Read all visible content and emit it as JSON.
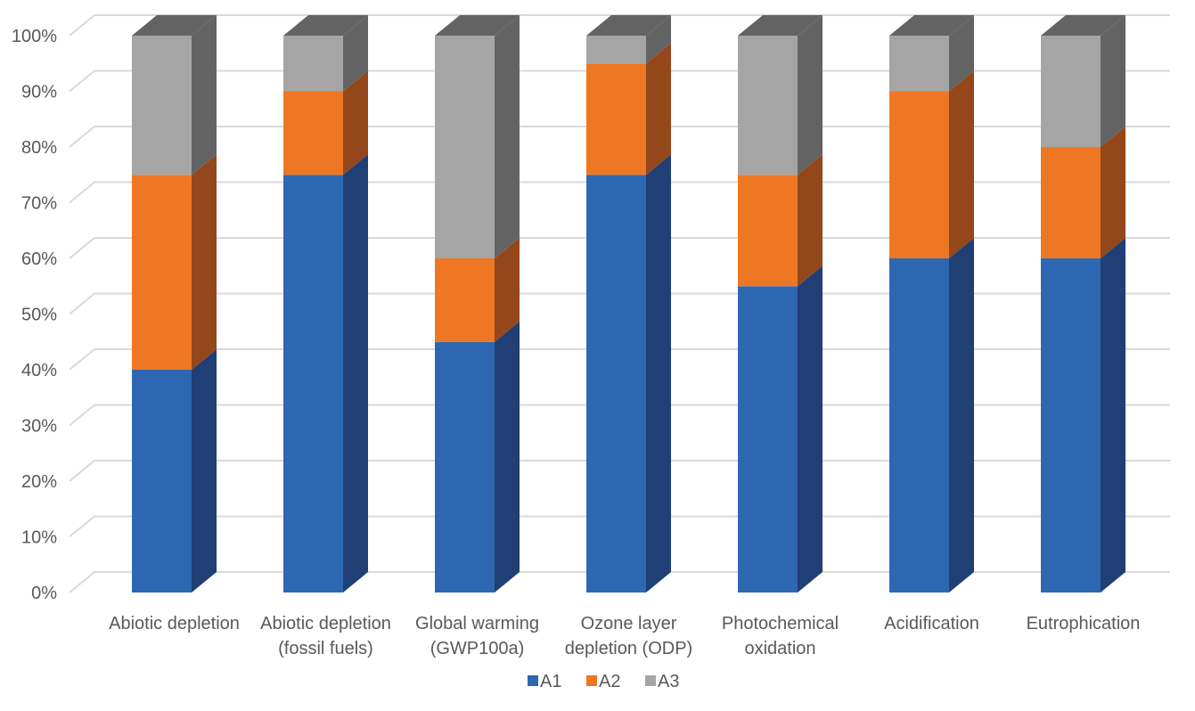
{
  "chart_data": {
    "type": "bar",
    "stacked": true,
    "normalized": true,
    "style": "3d-column",
    "categories": [
      [
        "Abiotic depletion"
      ],
      [
        "Abiotic depletion",
        "(fossil fuels)"
      ],
      [
        "Global warming",
        "(GWP100a)"
      ],
      [
        "Ozone layer",
        "depletion (ODP)"
      ],
      [
        "Photochemical",
        "oxidation"
      ],
      [
        "Acidification"
      ],
      [
        "Eutrophication"
      ]
    ],
    "series": [
      {
        "name": "A1",
        "color": "#2E67B1",
        "side_color": "#1F3F75",
        "values": [
          40,
          75,
          45,
          75,
          55,
          60,
          60
        ]
      },
      {
        "name": "A2",
        "color": "#ED7722",
        "side_color": "#94471A",
        "values": [
          35,
          15,
          15,
          20,
          20,
          30,
          20
        ]
      },
      {
        "name": "A3",
        "color": "#A5A5A5",
        "side_color": "#636363",
        "values": [
          25,
          10,
          40,
          5,
          25,
          10,
          20
        ]
      }
    ],
    "y_ticks": [
      "0%",
      "10%",
      "20%",
      "30%",
      "40%",
      "50%",
      "60%",
      "70%",
      "80%",
      "90%",
      "100%"
    ],
    "ylim": [
      0,
      100
    ],
    "grid": true,
    "legend": "bottom",
    "title": "",
    "xlabel": "",
    "ylabel": ""
  }
}
